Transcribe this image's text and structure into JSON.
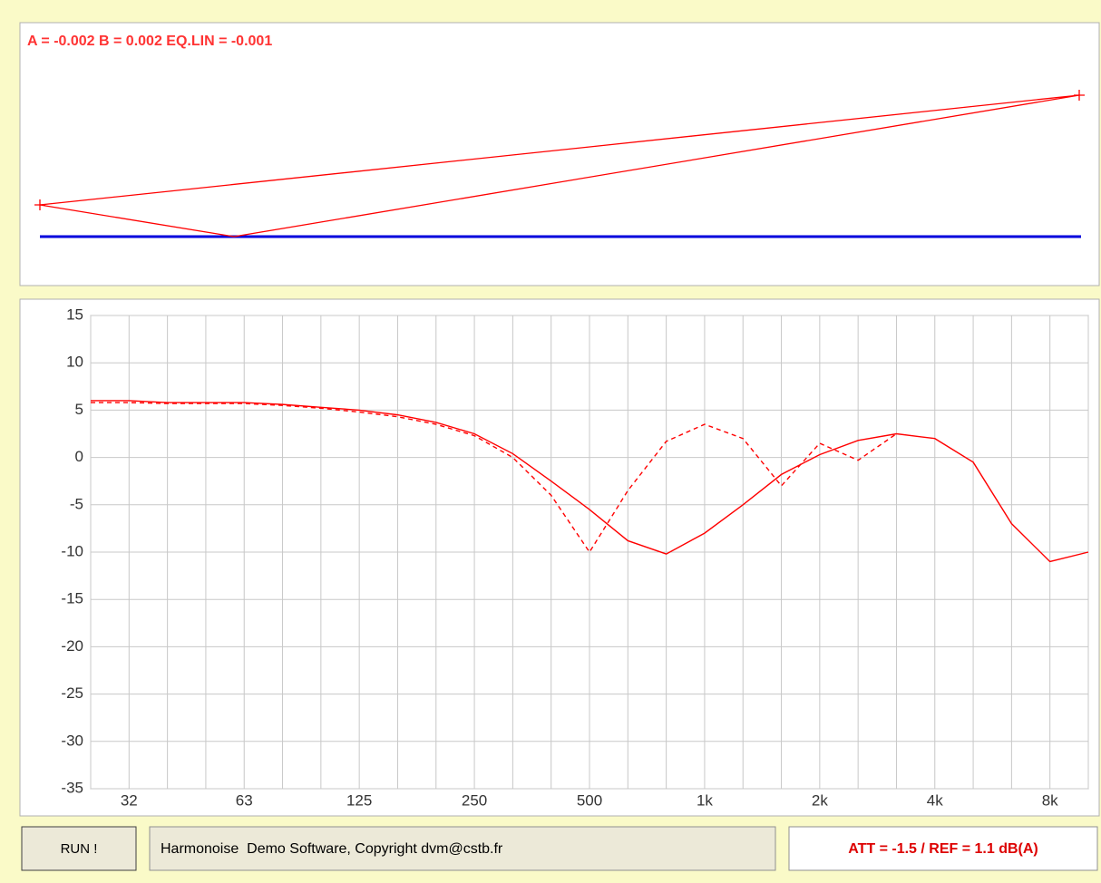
{
  "header": {
    "coefficients": "A = -0.002 B = 0.002 EQ.LIN = -0.001"
  },
  "chart_data": {
    "type": "line",
    "categories": [
      null,
      "32",
      null,
      null,
      "63",
      null,
      null,
      "125",
      null,
      null,
      "250",
      null,
      null,
      "500",
      null,
      null,
      "1k",
      null,
      null,
      "2k",
      null,
      null,
      "4k",
      null,
      null,
      "8k",
      null
    ],
    "series": [
      {
        "color": "#ff0000",
        "dashed": false,
        "values": [
          6.0,
          6.0,
          5.8,
          5.8,
          5.8,
          5.6,
          5.3,
          5.0,
          4.5,
          3.7,
          2.5,
          0.4,
          -2.5,
          -5.5,
          -8.8,
          -10.2,
          -8.0,
          -5.0,
          -1.8,
          0.3,
          1.8,
          2.5,
          2.0,
          -0.5,
          -7.0,
          -11.0,
          -10.0
        ]
      },
      {
        "color": "#ff0000",
        "dashed": true,
        "values": [
          5.8,
          5.8,
          5.7,
          5.7,
          5.7,
          5.5,
          5.2,
          4.8,
          4.3,
          3.5,
          2.3,
          0.0,
          -4.0,
          -10.0,
          -3.5,
          1.7,
          3.5,
          2.0,
          -3.0,
          1.5,
          -0.3,
          2.5,
          null,
          null,
          null,
          null,
          null
        ]
      }
    ],
    "ylim": [
      -35,
      15
    ],
    "yticks": [
      15,
      10,
      5,
      0,
      -5,
      -10,
      -15,
      -20,
      -25,
      -30,
      -35
    ],
    "grid": true
  },
  "footer": {
    "button": "RUN !",
    "status": "Harmonoise  Demo Software, Copyright dvm@cstb.fr",
    "result": "ATT = -1.5 / REF = 1.1 dB(A)"
  }
}
